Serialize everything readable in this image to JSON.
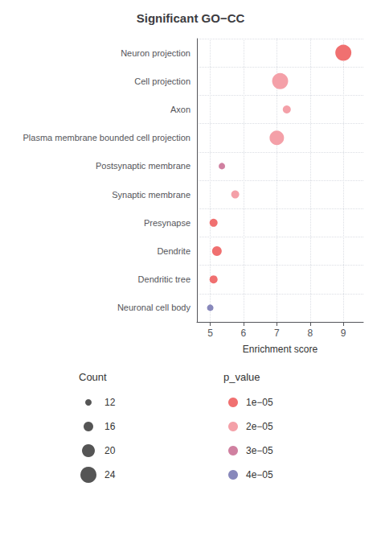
{
  "chart_data": {
    "type": "scatter",
    "title": "Significant GO−CC",
    "xlabel": "Enrichment score",
    "orientation": "horizontal",
    "categories": [
      "Neuron projection",
      "Cell projection",
      "Axon",
      "Plasma membrane bounded cell projection",
      "Postsynaptic membrane",
      "Synaptic membrane",
      "Presynapse",
      "Dendrite",
      "Dendritic tree",
      "Neuronal cell body"
    ],
    "values": [
      9.0,
      7.1,
      7.3,
      7.0,
      5.35,
      5.75,
      5.1,
      5.2,
      5.1,
      5.0
    ],
    "counts": [
      24,
      24,
      14,
      22,
      12,
      14,
      14,
      16,
      14,
      12
    ],
    "pvalues": [
      1e-05,
      2e-05,
      2e-05,
      2e-05,
      3e-05,
      2e-05,
      1e-05,
      1e-05,
      1e-05,
      4e-05
    ],
    "xlim": [
      4.6,
      9.6
    ],
    "xticks": [
      5,
      6,
      7,
      8,
      9
    ],
    "grid": true,
    "count_legend": {
      "title": "Count",
      "values": [
        12,
        16,
        20,
        24
      ],
      "color": "#555555"
    },
    "pvalue_legend": {
      "title": "p_value",
      "values": [
        1e-05,
        2e-05,
        3e-05,
        4e-05
      ],
      "labels": [
        "1e−05",
        "2e−05",
        "3e−05",
        "4e−05"
      ],
      "colors": [
        "#f07070",
        "#f4a0a8",
        "#d080a0",
        "#8888bb"
      ]
    }
  }
}
